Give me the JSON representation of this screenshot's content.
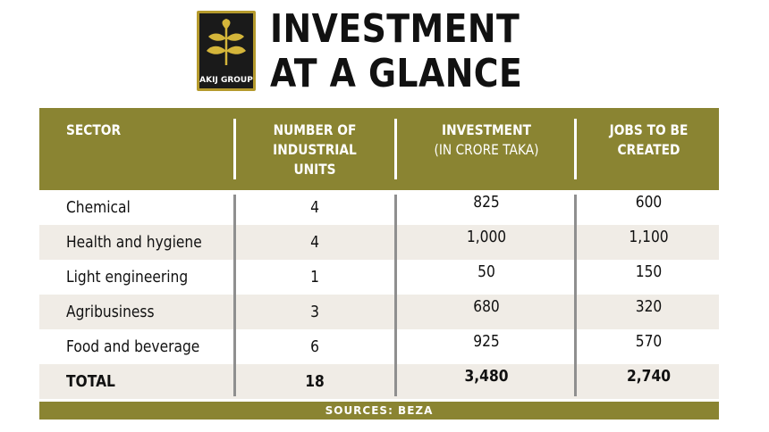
{
  "logo": {
    "text": "AKIJ GROUP",
    "colors": {
      "background": "#1a1a1a",
      "border": "#b59a2d",
      "leaf": "#d4b53a"
    }
  },
  "headline": {
    "line1": "INVESTMENT",
    "line2": "AT A GLANCE"
  },
  "table": {
    "header_color": "#8a8432",
    "columns": [
      {
        "title": "SECTOR",
        "subtitle": ""
      },
      {
        "title_lines": [
          "NUMBER OF",
          "INDUSTRIAL",
          "UNITS"
        ]
      },
      {
        "title": "INVESTMENT",
        "subtitle": "(IN CRORE TAKA)"
      },
      {
        "title_lines": [
          "JOBS TO BE",
          "CREATED"
        ]
      }
    ],
    "rows": [
      {
        "sector": "Chemical",
        "units": "4",
        "investment": "825",
        "jobs": "600"
      },
      {
        "sector": "Health and hygiene",
        "units": "4",
        "investment": "1,000",
        "jobs": "1,100"
      },
      {
        "sector": "Light engineering",
        "units": "1",
        "investment": "50",
        "jobs": "150"
      },
      {
        "sector": "Agribusiness",
        "units": "3",
        "investment": "680",
        "jobs": "320"
      },
      {
        "sector": "Food and beverage",
        "units": "6",
        "investment": "925",
        "jobs": "570"
      }
    ],
    "total": {
      "sector": "TOTAL",
      "units": "18",
      "investment": "3,480",
      "jobs": "2,740"
    }
  },
  "footer": {
    "source": "SOURCES: BEZA"
  }
}
